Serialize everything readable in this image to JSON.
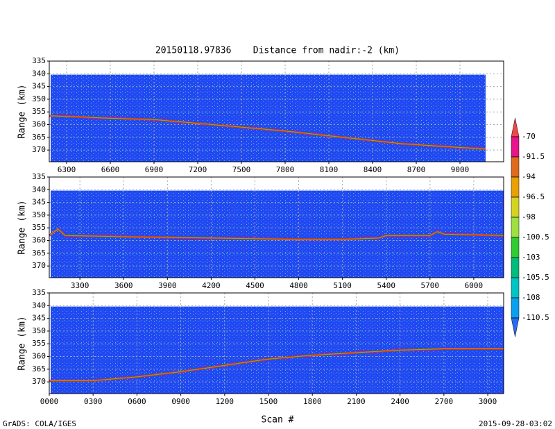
{
  "chart_data": [
    {
      "type": "line",
      "title": "20150118.97836    Distance from nadir:-2 (km)",
      "ylabel": "Range (km)",
      "x": [
        6181,
        6400,
        6600,
        6900,
        7300,
        7800,
        8200,
        8600,
        9000,
        9176
      ],
      "series": [
        {
          "color": "#f02020",
          "values": [
            356.5,
            357,
            357.5,
            358,
            360,
            362.5,
            365,
            367.5,
            369,
            369.5
          ]
        }
      ],
      "xlim": [
        6181,
        9300
      ],
      "xticks": [
        6300,
        6600,
        6900,
        7200,
        7500,
        7800,
        8100,
        8400,
        8700,
        9000
      ],
      "ylim": [
        335,
        374.6
      ],
      "y_inverted": true,
      "yticks": [
        335,
        340,
        345,
        350,
        355,
        360,
        365,
        370
      ],
      "grid": true
    },
    {
      "type": "line",
      "ylabel": "Range (km)",
      "x": [
        3090,
        3150,
        3200,
        3600,
        4200,
        4800,
        5100,
        5350,
        5400,
        5700,
        5750,
        5800,
        6205
      ],
      "series": [
        {
          "color": "#f02020",
          "values": [
            358,
            355.5,
            358,
            358.5,
            359,
            359.5,
            359.5,
            359,
            358,
            358,
            356.5,
            357.5,
            358
          ]
        }
      ],
      "xlim": [
        3090,
        6205
      ],
      "xticks": [
        3300,
        3600,
        3900,
        4200,
        4500,
        4800,
        5100,
        5400,
        5700,
        6000
      ],
      "ylim": [
        335,
        374.6
      ],
      "y_inverted": true,
      "yticks": [
        335,
        340,
        345,
        350,
        355,
        360,
        365,
        370
      ],
      "grid": true
    },
    {
      "type": "line",
      "ylabel": "Range (km)",
      "xlabel": "Scan #",
      "x": [
        0,
        300,
        600,
        900,
        1200,
        1500,
        1800,
        2100,
        2400,
        2700,
        3109
      ],
      "series": [
        {
          "color": "#f02020",
          "values": [
            369.5,
            369.5,
            368,
            366,
            363.5,
            361,
            359.5,
            358.5,
            357.5,
            357,
            357
          ]
        }
      ],
      "xlim": [
        0,
        3109
      ],
      "xticks": [
        {
          "value": 0,
          "label": "0000"
        },
        {
          "value": 300,
          "label": "0300"
        },
        {
          "value": 600,
          "label": "0600"
        },
        {
          "value": 900,
          "label": "0900"
        },
        1200,
        1500,
        1800,
        2100,
        2400,
        2700,
        3000
      ],
      "ylim": [
        335,
        374.6
      ],
      "y_inverted": true,
      "yticks": [
        335,
        340,
        345,
        350,
        355,
        360,
        365,
        370
      ],
      "grid": true
    }
  ],
  "colorbar": {
    "levels": [
      -70,
      -91.5,
      -94,
      -96.5,
      -98,
      -100.5,
      -103,
      -105.5,
      -108,
      -110.5
    ],
    "colors": [
      "#f04848",
      "#e8148c",
      "#e06a1e",
      "#eaa000",
      "#d4d420",
      "#9ee040",
      "#30cc30",
      "#00bc7c",
      "#00c4c4",
      "#0aa0f0",
      "#2a6cf0"
    ]
  },
  "footer": {
    "left": "GrADS: COLA/IGES",
    "right": "2015-09-28-03:02"
  }
}
